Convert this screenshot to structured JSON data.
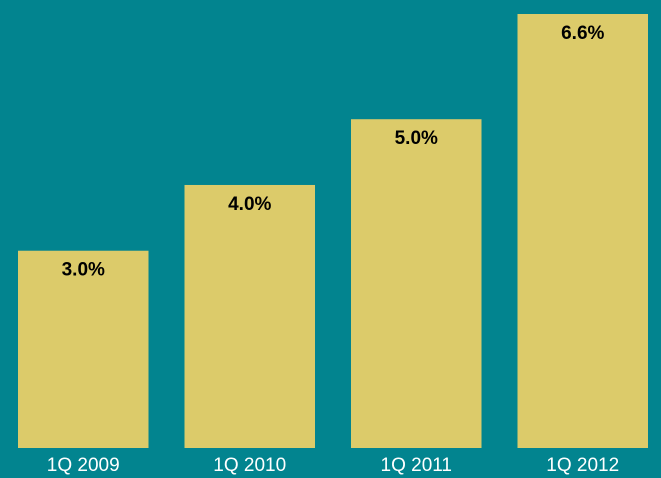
{
  "chart_data": {
    "type": "bar",
    "categories": [
      "1Q 2009",
      "1Q 2010",
      "1Q 2011",
      "1Q 2012"
    ],
    "values": [
      3.0,
      4.0,
      5.0,
      6.6
    ],
    "value_labels": [
      "3.0%",
      "4.0%",
      "5.0%",
      "6.6%"
    ],
    "color": "#dccb6a"
  }
}
